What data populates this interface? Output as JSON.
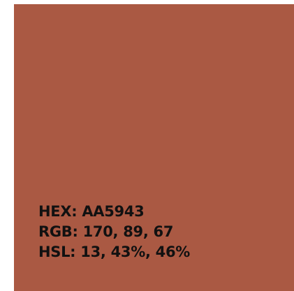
{
  "swatch": {
    "color": "#AA5943",
    "lines": [
      "HEX: AA5943",
      "RGB: 170, 89, 67",
      "HSL: 13, 43%, 46%"
    ]
  }
}
